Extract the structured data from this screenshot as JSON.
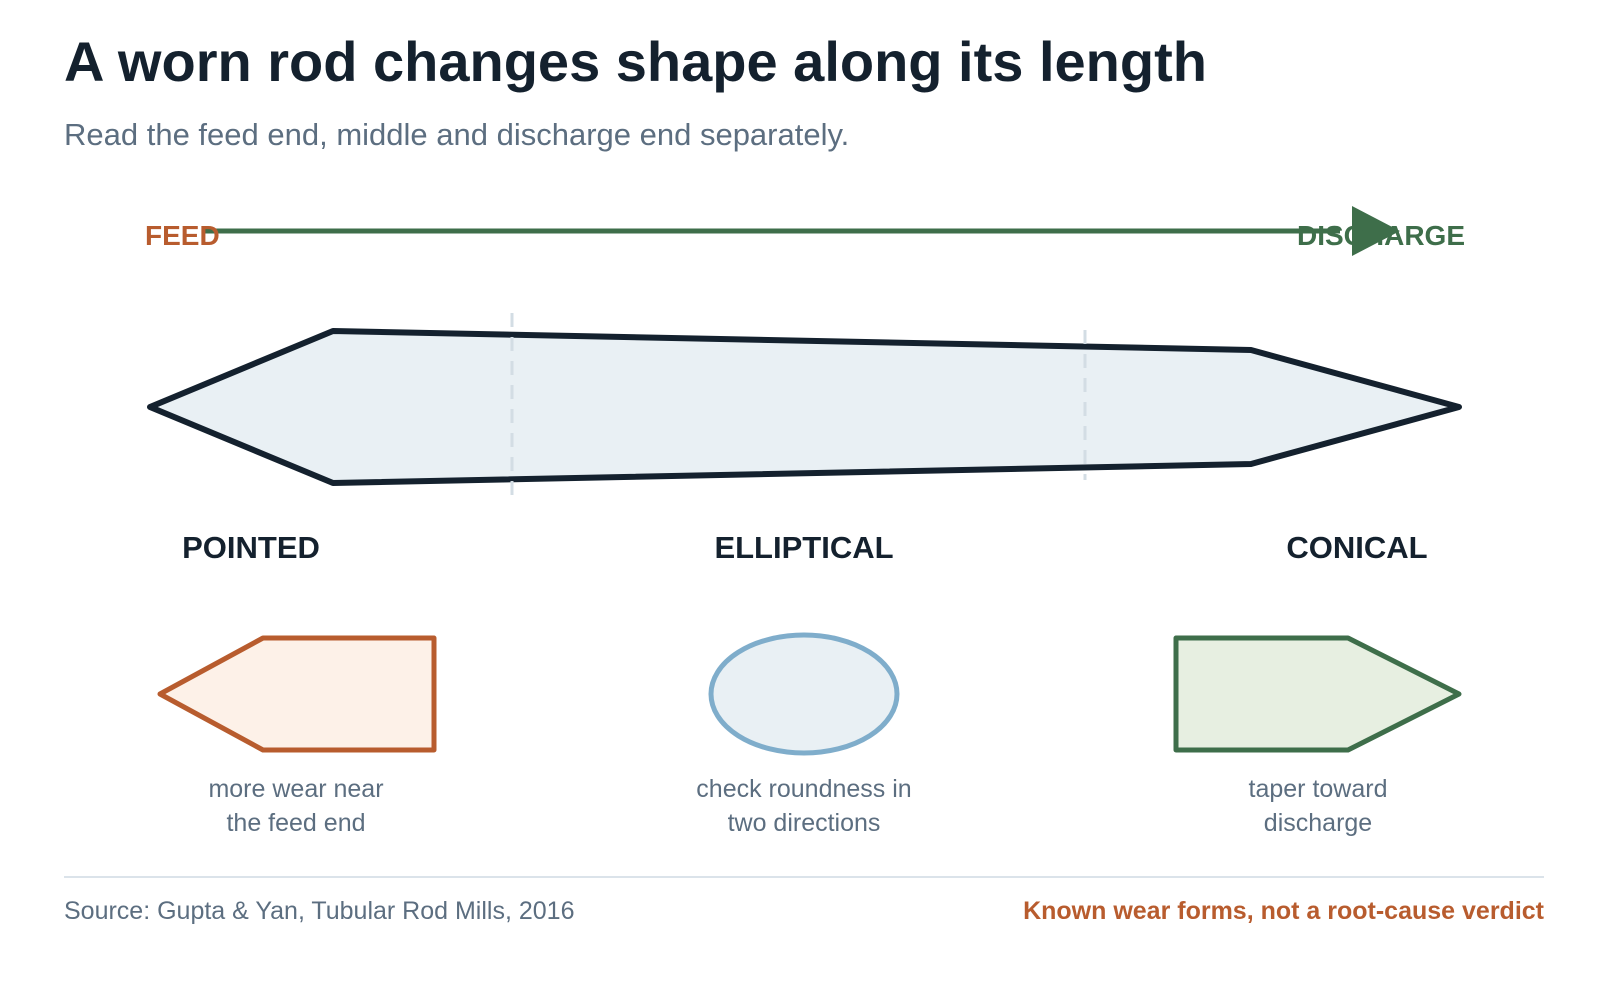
{
  "header": {
    "title": "A worn rod changes shape along its length",
    "subtitle": "Read the feed end, middle and discharge end separately."
  },
  "axis": {
    "feed_label": "FEED",
    "discharge_label": "DISCHARGE"
  },
  "forms": [
    {
      "label": "POINTED",
      "note_line1": "more wear near",
      "note_line2": "the feed end"
    },
    {
      "label": "ELLIPTICAL",
      "note_line1": "check roundness in",
      "note_line2": "two directions"
    },
    {
      "label": "CONICAL",
      "note_line1": "taper toward",
      "note_line2": "discharge"
    }
  ],
  "footer": {
    "source": "Source: Gupta & Yan, Tubular Rod Mills, 2016",
    "caveat": "Known wear forms, not a root-cause verdict"
  },
  "colors": {
    "ink": "#14212e",
    "muted": "#5c6e80",
    "feed": "#b85c2e",
    "discharge": "#3e6e4a",
    "rod_fill": "#e9f0f4",
    "pointed_fill": "#fdf1e8",
    "elliptical_stroke": "#7fadcb",
    "elliptical_fill": "#e9f0f4",
    "conical_fill": "#e7efe1",
    "divider": "#dbe3ea"
  }
}
